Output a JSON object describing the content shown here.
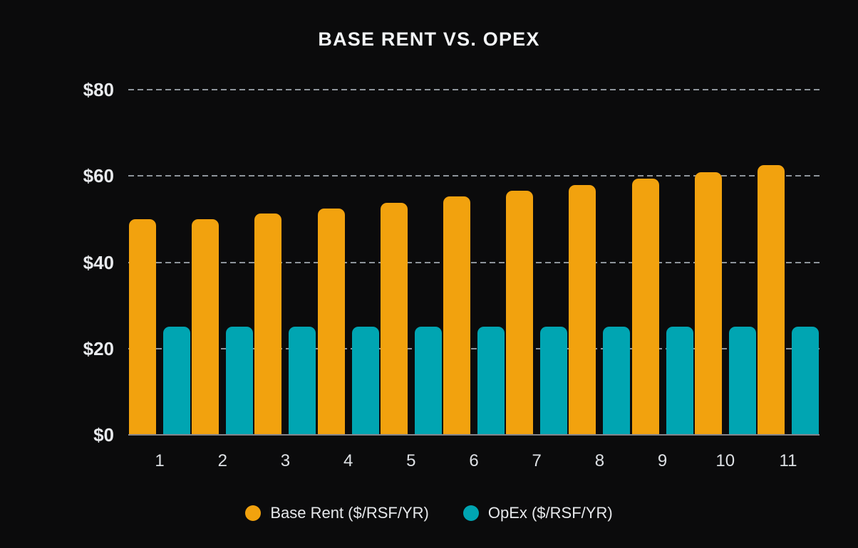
{
  "page": {
    "background_color": "#0B0B0C",
    "text_color": "#E8EAED",
    "gridline_color": "#8E949B",
    "axis_line_color": "#84848B"
  },
  "chart_data": {
    "type": "bar",
    "title": "BASE RENT VS. OPEX",
    "categories": [
      "1",
      "2",
      "3",
      "4",
      "5",
      "6",
      "7",
      "8",
      "9",
      "10",
      "11"
    ],
    "series": [
      {
        "name": "Base Rent ($/RSF/YR)",
        "color": "#F2A20E",
        "values": [
          50.0,
          50.0,
          51.25,
          52.53,
          53.84,
          55.19,
          56.57,
          57.98,
          59.43,
          60.92,
          62.44
        ]
      },
      {
        "name": "OpEx ($/RSF/YR)",
        "color": "#00A5B2",
        "values": [
          25,
          25,
          25,
          25,
          25,
          25,
          25,
          25,
          25,
          25,
          25
        ]
      }
    ],
    "xlabel": "",
    "ylabel": "",
    "ylim": [
      0,
      80
    ],
    "yticks": [
      {
        "value": 80,
        "label": "$80"
      },
      {
        "value": 60,
        "label": "$60"
      },
      {
        "value": 40,
        "label": "$40"
      },
      {
        "value": 20,
        "label": "$20"
      },
      {
        "value": 0,
        "label": "$0"
      }
    ],
    "grid": "horizontal-dashed",
    "legend_position": "bottom"
  }
}
